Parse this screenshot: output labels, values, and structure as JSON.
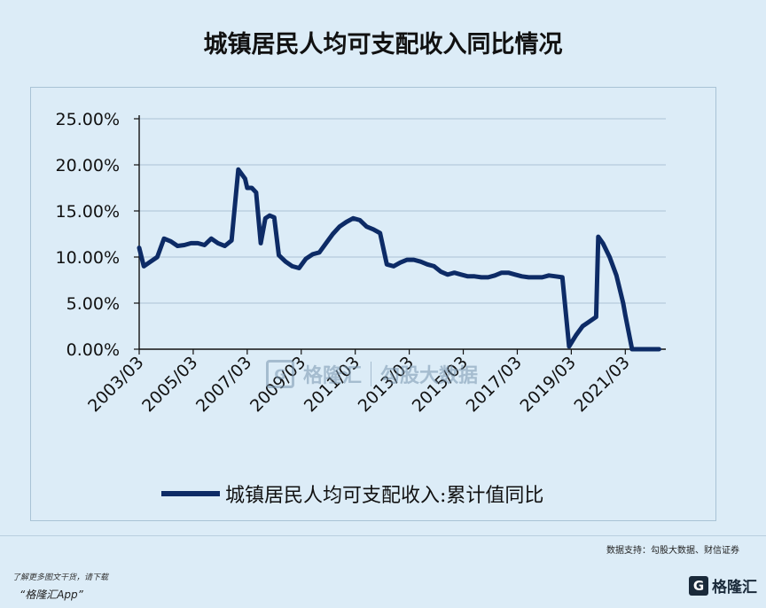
{
  "header": {
    "title": "城镇居民人均可支配收入同比情况"
  },
  "chart_data": {
    "type": "line",
    "title": "城镇居民人均可支配收入同比情况",
    "ylim": [
      0,
      25
    ],
    "y_ticks": [
      0,
      5,
      10,
      15,
      20,
      25
    ],
    "y_tick_labels": [
      "0.00%",
      "5.00%",
      "10.00%",
      "15.00%",
      "20.00%",
      "25.00%"
    ],
    "x_range": [
      2003.0,
      2022.5
    ],
    "x_ticks": [
      2003,
      2005,
      2007,
      2009,
      2011,
      2013,
      2015,
      2017,
      2019,
      2021
    ],
    "x_tick_labels": [
      "2003/03",
      "2005/03",
      "2007/03",
      "2009/03",
      "2011/03",
      "2013/03",
      "2015/03",
      "2017/03",
      "2019/03",
      "2021/03"
    ],
    "grid": "horizontal",
    "legend_position": "bottom",
    "line_color": "#0d2b66",
    "series": [
      {
        "name": "城镇居民人均可支配收入:累计值同比",
        "x": [
          2003.0,
          2003.17,
          2003.42,
          2003.67,
          2003.92,
          2004.17,
          2004.42,
          2004.67,
          2004.92,
          2005.17,
          2005.42,
          2005.67,
          2005.92,
          2006.17,
          2006.42,
          2006.67,
          2006.92,
          2007.0,
          2007.17,
          2007.33,
          2007.5,
          2007.67,
          2007.83,
          2008.0,
          2008.17,
          2008.42,
          2008.67,
          2008.92,
          2009.17,
          2009.42,
          2009.67,
          2009.92,
          2010.17,
          2010.42,
          2010.67,
          2010.92,
          2011.17,
          2011.42,
          2011.67,
          2011.92,
          2012.17,
          2012.42,
          2012.67,
          2012.92,
          2013.17,
          2013.42,
          2013.67,
          2013.92,
          2014.17,
          2014.42,
          2014.67,
          2014.92,
          2015.17,
          2015.42,
          2015.67,
          2015.92,
          2016.17,
          2016.42,
          2016.67,
          2016.92,
          2017.17,
          2017.42,
          2017.67,
          2017.92,
          2018.17,
          2018.42,
          2018.67,
          2018.92,
          2019.17,
          2019.42,
          2019.67,
          2019.92,
          2020.0,
          2020.17,
          2020.42,
          2020.67,
          2020.92,
          2021.0,
          2021.25,
          2021.5,
          2021.75,
          2022.0,
          2022.25,
          2022.42
        ],
        "values": [
          11.0,
          9.0,
          9.5,
          10.0,
          12.0,
          11.7,
          11.2,
          11.3,
          11.5,
          11.5,
          11.3,
          12.0,
          11.5,
          11.2,
          11.8,
          19.5,
          18.5,
          17.5,
          17.5,
          17.0,
          11.5,
          14.2,
          14.5,
          14.3,
          10.2,
          9.5,
          9.0,
          8.8,
          9.8,
          10.3,
          10.5,
          11.5,
          12.5,
          13.3,
          13.8,
          14.2,
          14.0,
          13.3,
          13.0,
          12.6,
          9.2,
          9.0,
          9.4,
          9.7,
          9.7,
          9.5,
          9.2,
          9.0,
          8.4,
          8.1,
          8.3,
          8.1,
          7.9,
          7.9,
          7.8,
          7.8,
          8.0,
          8.3,
          8.3,
          8.1,
          7.9,
          7.8,
          7.8,
          7.8,
          8.0,
          7.9,
          7.8,
          0.3,
          1.5,
          2.5,
          3.0,
          3.5,
          12.2,
          11.5,
          10.0,
          8.0,
          5.0,
          3.7,
          0,
          0,
          0,
          0,
          0,
          0
        ]
      }
    ]
  },
  "legend": {
    "label": "城镇居民人均可支配收入:累计值同比"
  },
  "watermark": {
    "brand": "格隆汇",
    "secondary": "勾股大数据"
  },
  "footer": {
    "source": "数据支持：勾股大数据、财信证券",
    "promo_line1": "了解更多图文干货，请下载",
    "promo_line2": "“格隆汇App”",
    "brand": "格隆汇",
    "brand_mark": "G"
  }
}
